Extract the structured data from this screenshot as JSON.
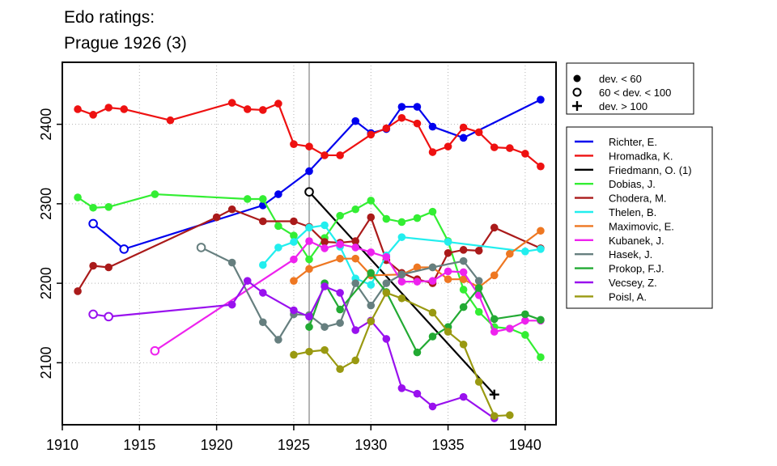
{
  "chart_data": {
    "type": "line",
    "title_lines": [
      "Edo ratings:",
      "Prague 1926 (3)"
    ],
    "xlim": [
      1910,
      1942
    ],
    "ylim": [
      2022,
      2478
    ],
    "x_ticks": [
      1910,
      1915,
      1920,
      1925,
      1930,
      1935,
      1940
    ],
    "y_ticks": [
      2100,
      2200,
      2300,
      2400
    ],
    "event_year": 1926,
    "grid": true,
    "legend_position": "right",
    "marker_legend": [
      {
        "marker": "filled",
        "label": "dev. < 60"
      },
      {
        "marker": "open",
        "label": "60 < dev. < 100"
      },
      {
        "marker": "plus",
        "label": "dev. > 100"
      }
    ],
    "series": [
      {
        "name": "Richter, E.",
        "color": "#0000ee",
        "points": [
          [
            1912,
            2275,
            "o"
          ],
          [
            1914,
            2243,
            "o"
          ],
          [
            1923,
            2298,
            "f"
          ],
          [
            1924,
            2312,
            "f"
          ],
          [
            1926,
            2341,
            "f"
          ],
          [
            1929,
            2404,
            "f"
          ],
          [
            1930,
            2389,
            "f"
          ],
          [
            1931,
            2394,
            "f"
          ],
          [
            1932,
            2422,
            "f"
          ],
          [
            1933,
            2422,
            "f"
          ],
          [
            1934,
            2397,
            "f"
          ],
          [
            1936,
            2383,
            "f"
          ],
          [
            1941,
            2431,
            "f"
          ]
        ]
      },
      {
        "name": "Hromadka, K.",
        "color": "#ee1111",
        "points": [
          [
            1911,
            2419,
            "f"
          ],
          [
            1912,
            2412,
            "f"
          ],
          [
            1913,
            2421,
            "f"
          ],
          [
            1914,
            2419,
            "f"
          ],
          [
            1917,
            2405,
            "f"
          ],
          [
            1921,
            2427,
            "f"
          ],
          [
            1922,
            2419,
            "f"
          ],
          [
            1923,
            2418,
            "f"
          ],
          [
            1924,
            2426,
            "f"
          ],
          [
            1925,
            2375,
            "f"
          ],
          [
            1926,
            2372,
            "f"
          ],
          [
            1927,
            2361,
            "f"
          ],
          [
            1928,
            2361,
            "f"
          ],
          [
            1930,
            2387,
            "f"
          ],
          [
            1931,
            2395,
            "f"
          ],
          [
            1932,
            2408,
            "f"
          ],
          [
            1933,
            2401,
            "f"
          ],
          [
            1934,
            2365,
            "f"
          ],
          [
            1935,
            2372,
            "f"
          ],
          [
            1936,
            2396,
            "f"
          ],
          [
            1937,
            2390,
            "f"
          ],
          [
            1938,
            2371,
            "f"
          ],
          [
            1939,
            2370,
            "f"
          ],
          [
            1940,
            2363,
            "f"
          ],
          [
            1941,
            2347,
            "f"
          ]
        ]
      },
      {
        "name": "Friedmann, O. (1)",
        "color": "#000000",
        "points": [
          [
            1926,
            2315,
            "o"
          ],
          [
            1938,
            2060,
            "p"
          ]
        ]
      },
      {
        "name": "Dobias, J.",
        "color": "#33ee33",
        "points": [
          [
            1911,
            2308,
            "f"
          ],
          [
            1912,
            2295,
            "f"
          ],
          [
            1913,
            2296,
            "f"
          ],
          [
            1916,
            2312,
            "f"
          ],
          [
            1922,
            2306,
            "f"
          ],
          [
            1923,
            2306,
            "f"
          ],
          [
            1924,
            2272,
            "f"
          ],
          [
            1925,
            2260,
            "f"
          ],
          [
            1926,
            2230,
            "f"
          ],
          [
            1927,
            2257,
            "f"
          ],
          [
            1928,
            2285,
            "f"
          ],
          [
            1929,
            2293,
            "f"
          ],
          [
            1930,
            2304,
            "f"
          ],
          [
            1931,
            2281,
            "f"
          ],
          [
            1932,
            2277,
            "f"
          ],
          [
            1933,
            2282,
            "f"
          ],
          [
            1934,
            2290,
            "f"
          ],
          [
            1935,
            2253,
            "f"
          ],
          [
            1936,
            2192,
            "f"
          ],
          [
            1937,
            2164,
            "f"
          ],
          [
            1938,
            2145,
            "f"
          ],
          [
            1939,
            2143,
            "f"
          ],
          [
            1940,
            2135,
            "f"
          ],
          [
            1941,
            2107,
            "f"
          ]
        ]
      },
      {
        "name": "Chodera, M.",
        "color": "#aa1a1a",
        "points": [
          [
            1911,
            2190,
            "f"
          ],
          [
            1912,
            2222,
            "f"
          ],
          [
            1913,
            2220,
            "f"
          ],
          [
            1920,
            2283,
            "f"
          ],
          [
            1921,
            2293,
            "f"
          ],
          [
            1923,
            2278,
            "f"
          ],
          [
            1925,
            2278,
            "f"
          ],
          [
            1926,
            2271,
            "f"
          ],
          [
            1927,
            2252,
            "f"
          ],
          [
            1928,
            2251,
            "f"
          ],
          [
            1929,
            2253,
            "f"
          ],
          [
            1930,
            2283,
            "f"
          ],
          [
            1931,
            2229,
            "f"
          ],
          [
            1932,
            2213,
            "f"
          ],
          [
            1933,
            2205,
            "f"
          ],
          [
            1934,
            2200,
            "f"
          ],
          [
            1935,
            2238,
            "f"
          ],
          [
            1936,
            2242,
            "f"
          ],
          [
            1937,
            2241,
            "f"
          ],
          [
            1938,
            2270,
            "f"
          ],
          [
            1941,
            2244,
            "f"
          ]
        ]
      },
      {
        "name": "Thelen, B.",
        "color": "#22eeee",
        "points": [
          [
            1923,
            2223,
            "f"
          ],
          [
            1924,
            2245,
            "f"
          ],
          [
            1925,
            2252,
            "f"
          ],
          [
            1926,
            2270,
            "f"
          ],
          [
            1927,
            2273,
            "f"
          ],
          [
            1928,
            2246,
            "f"
          ],
          [
            1929,
            2206,
            "f"
          ],
          [
            1930,
            2198,
            "f"
          ],
          [
            1931,
            2235,
            "f"
          ],
          [
            1932,
            2258,
            "f"
          ],
          [
            1935,
            2252,
            "f"
          ],
          [
            1940,
            2240,
            "f"
          ],
          [
            1941,
            2243,
            "f"
          ]
        ]
      },
      {
        "name": "Maximovic, E.",
        "color": "#ee7722",
        "points": [
          [
            1925,
            2203,
            "f"
          ],
          [
            1926,
            2218,
            "f"
          ],
          [
            1928,
            2231,
            "f"
          ],
          [
            1929,
            2231,
            "f"
          ],
          [
            1930,
            2210,
            "f"
          ],
          [
            1932,
            2211,
            "f"
          ],
          [
            1933,
            2220,
            "f"
          ],
          [
            1934,
            2220,
            "f"
          ],
          [
            1935,
            2205,
            "f"
          ],
          [
            1936,
            2205,
            "f"
          ],
          [
            1937,
            2195,
            "f"
          ],
          [
            1938,
            2210,
            "f"
          ],
          [
            1939,
            2237,
            "f"
          ],
          [
            1941,
            2266,
            "f"
          ]
        ]
      },
      {
        "name": "Kubanek, J.",
        "color": "#ee22ee",
        "points": [
          [
            1916,
            2115,
            "o"
          ],
          [
            1925,
            2230,
            "f"
          ],
          [
            1926,
            2253,
            "f"
          ],
          [
            1927,
            2244,
            "f"
          ],
          [
            1928,
            2249,
            "f"
          ],
          [
            1929,
            2245,
            "f"
          ],
          [
            1930,
            2239,
            "f"
          ],
          [
            1931,
            2233,
            "f"
          ],
          [
            1932,
            2202,
            "f"
          ],
          [
            1933,
            2202,
            "f"
          ],
          [
            1934,
            2203,
            "f"
          ],
          [
            1935,
            2215,
            "f"
          ],
          [
            1936,
            2214,
            "f"
          ],
          [
            1937,
            2185,
            "f"
          ],
          [
            1938,
            2139,
            "f"
          ],
          [
            1939,
            2143,
            "f"
          ],
          [
            1940,
            2153,
            "f"
          ],
          [
            1941,
            2153,
            "f"
          ]
        ]
      },
      {
        "name": "Hasek, J.",
        "color": "#667f7f",
        "points": [
          [
            1919,
            2245,
            "o"
          ],
          [
            1921,
            2226,
            "f"
          ],
          [
            1923,
            2151,
            "f"
          ],
          [
            1924,
            2129,
            "f"
          ],
          [
            1925,
            2161,
            "f"
          ],
          [
            1926,
            2160,
            "f"
          ],
          [
            1927,
            2145,
            "f"
          ],
          [
            1928,
            2150,
            "f"
          ],
          [
            1929,
            2200,
            "f"
          ],
          [
            1930,
            2172,
            "f"
          ],
          [
            1931,
            2200,
            "f"
          ],
          [
            1932,
            2211,
            "f"
          ],
          [
            1934,
            2220,
            "f"
          ],
          [
            1936,
            2228,
            "f"
          ],
          [
            1937,
            2203,
            "f"
          ]
        ]
      },
      {
        "name": "Prokop, F.J.",
        "color": "#22aa33",
        "points": [
          [
            1926,
            2145,
            "f"
          ],
          [
            1927,
            2200,
            "f"
          ],
          [
            1928,
            2167,
            "f"
          ],
          [
            1930,
            2213,
            "f"
          ],
          [
            1931,
            2189,
            "f"
          ],
          [
            1933,
            2113,
            "f"
          ],
          [
            1934,
            2133,
            "f"
          ],
          [
            1935,
            2145,
            "f"
          ],
          [
            1936,
            2170,
            "f"
          ],
          [
            1937,
            2194,
            "f"
          ],
          [
            1938,
            2155,
            "f"
          ],
          [
            1940,
            2161,
            "f"
          ],
          [
            1941,
            2154,
            "f"
          ]
        ]
      },
      {
        "name": "Vecsey, Z.",
        "color": "#9911ee",
        "points": [
          [
            1912,
            2161,
            "o"
          ],
          [
            1913,
            2158,
            "o"
          ],
          [
            1921,
            2173,
            "f"
          ],
          [
            1922,
            2203,
            "f"
          ],
          [
            1923,
            2188,
            "f"
          ],
          [
            1925,
            2166,
            "f"
          ],
          [
            1926,
            2158,
            "f"
          ],
          [
            1927,
            2196,
            "f"
          ],
          [
            1928,
            2188,
            "f"
          ],
          [
            1929,
            2141,
            "f"
          ],
          [
            1930,
            2153,
            "f"
          ],
          [
            1931,
            2130,
            "f"
          ],
          [
            1932,
            2068,
            "f"
          ],
          [
            1933,
            2061,
            "f"
          ],
          [
            1934,
            2045,
            "f"
          ],
          [
            1936,
            2057,
            "f"
          ],
          [
            1938,
            2030,
            "f"
          ]
        ]
      },
      {
        "name": "Poisl, A.",
        "color": "#999911",
        "points": [
          [
            1925,
            2110,
            "f"
          ],
          [
            1926,
            2114,
            "f"
          ],
          [
            1927,
            2116,
            "f"
          ],
          [
            1928,
            2092,
            "f"
          ],
          [
            1929,
            2103,
            "f"
          ],
          [
            1930,
            2152,
            "f"
          ],
          [
            1931,
            2188,
            "f"
          ],
          [
            1932,
            2181,
            "f"
          ],
          [
            1934,
            2163,
            "f"
          ],
          [
            1935,
            2139,
            "f"
          ],
          [
            1936,
            2123,
            "f"
          ],
          [
            1937,
            2076,
            "f"
          ],
          [
            1938,
            2033,
            "f"
          ],
          [
            1939,
            2034,
            "f"
          ]
        ]
      }
    ]
  }
}
